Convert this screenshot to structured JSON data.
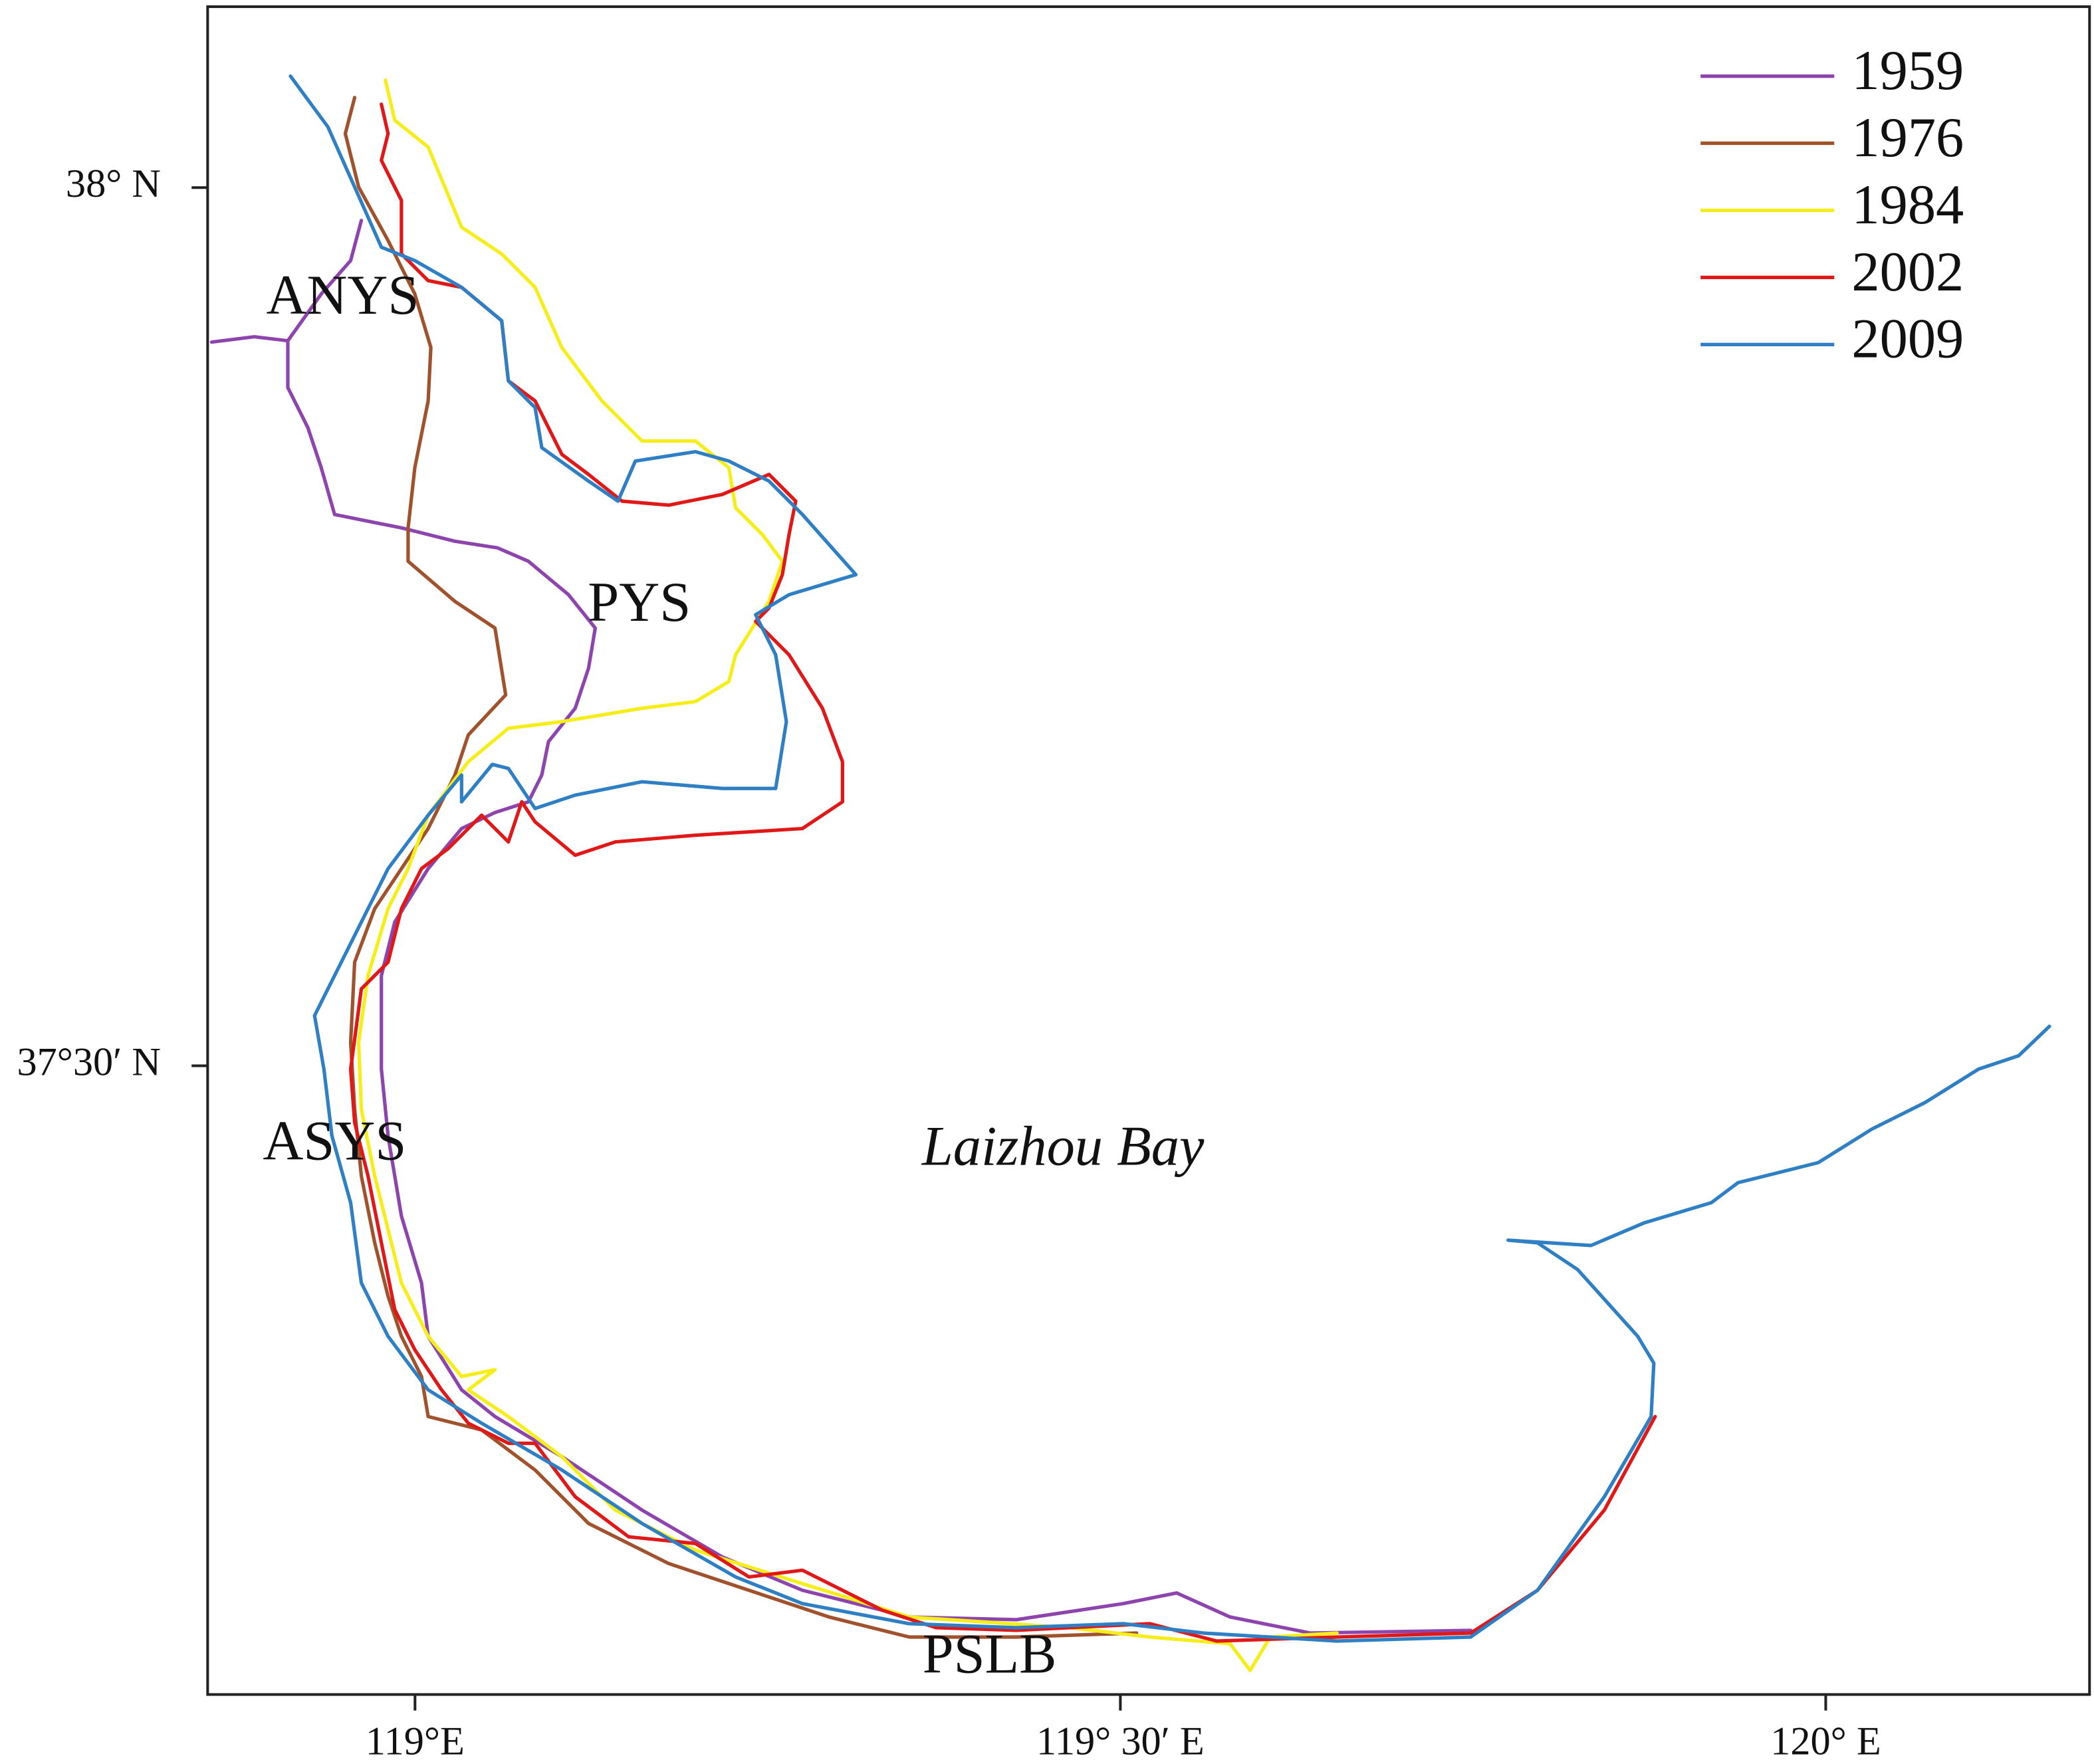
{
  "chart_data": {
    "type": "map",
    "xlim": [
      118.853,
      120.187
    ],
    "ylim": [
      37.142,
      38.103
    ],
    "xticks": [
      {
        "value": 119,
        "label": "119°E"
      },
      {
        "value": 119.5,
        "label": "119°  30′ E"
      },
      {
        "value": 120,
        "label": "120° E"
      }
    ],
    "yticks": [
      {
        "value": 37.5,
        "label": "37°30′ N"
      },
      {
        "value": 38,
        "label": "38° N"
      }
    ],
    "series": [
      {
        "name": "1959",
        "color": "#8e44ad"
      },
      {
        "name": "1976",
        "color": "#a0522d"
      },
      {
        "name": "1984",
        "color": "#f5ee1a"
      },
      {
        "name": "2002",
        "color": "#e01818"
      },
      {
        "name": "2009",
        "color": "#2e7fc4"
      }
    ],
    "annotations": [
      "ANYS",
      "PYS",
      "ASYS",
      "Laizhou Bay",
      "PSLB"
    ]
  }
}
